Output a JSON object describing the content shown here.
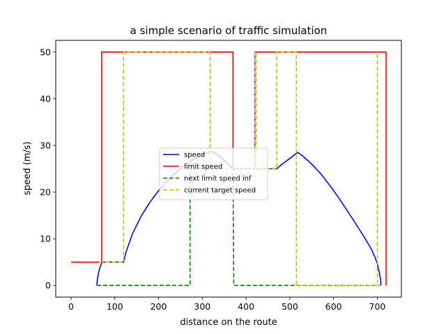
{
  "chart_data": {
    "type": "line",
    "title": "a simple scenario of traffic simulation",
    "xlabel": "distance on the route",
    "ylabel": "speed (m/s)",
    "xlim": [
      -35,
      755
    ],
    "ylim": [
      -2.5,
      52.5
    ],
    "xticks": [
      0,
      100,
      200,
      300,
      400,
      500,
      600,
      700
    ],
    "yticks": [
      0,
      10,
      20,
      30,
      40,
      50
    ],
    "grid": false,
    "legend_position": "center",
    "series": [
      {
        "name": "speed",
        "color": "#0000ff",
        "dash": "solid",
        "points": [
          [
            59,
            0
          ],
          [
            60,
            1.2
          ],
          [
            62,
            2.3
          ],
          [
            64,
            3.2
          ],
          [
            67,
            4.1
          ],
          [
            70,
            4.8
          ],
          [
            72,
            5.0
          ],
          [
            120,
            5.0
          ],
          [
            125,
            7.0
          ],
          [
            140,
            11.0
          ],
          [
            160,
            14.8
          ],
          [
            180,
            17.8
          ],
          [
            200,
            20.3
          ],
          [
            220,
            22.4
          ],
          [
            240,
            24.2
          ],
          [
            260,
            25.8
          ],
          [
            280,
            27.0
          ],
          [
            300,
            28.0
          ],
          [
            320,
            28.7
          ],
          [
            330,
            28.3
          ],
          [
            345,
            27.2
          ],
          [
            360,
            25.9
          ],
          [
            370,
            25.0
          ],
          [
            470,
            25.0
          ],
          [
            480,
            25.8
          ],
          [
            500,
            27.2
          ],
          [
            518,
            28.5
          ],
          [
            530,
            27.7
          ],
          [
            550,
            26.0
          ],
          [
            570,
            24.0
          ],
          [
            590,
            21.6
          ],
          [
            610,
            19.0
          ],
          [
            630,
            16.2
          ],
          [
            650,
            13.3
          ],
          [
            670,
            10.4
          ],
          [
            685,
            8.0
          ],
          [
            695,
            6.0
          ],
          [
            700,
            4.6
          ],
          [
            704,
            3.0
          ],
          [
            707,
            1.5
          ],
          [
            708,
            0.5
          ],
          [
            708,
            0
          ]
        ]
      },
      {
        "name": "limit speed",
        "color": "#ff0000",
        "dash": "solid",
        "points": [
          [
            0,
            5
          ],
          [
            70,
            5
          ],
          [
            70,
            50
          ],
          [
            370,
            50
          ],
          [
            370,
            25
          ],
          [
            420,
            25
          ],
          [
            420,
            50
          ],
          [
            720,
            50
          ],
          [
            720,
            0
          ]
        ]
      },
      {
        "name": "next limit speed inf",
        "color": "#008000",
        "dash": "dashed",
        "points": [
          [
            59,
            0
          ],
          [
            272,
            0
          ],
          [
            272,
            25
          ],
          [
            370,
            25
          ],
          [
            372,
            0
          ],
          [
            700,
            0
          ],
          [
            705,
            0
          ]
        ]
      },
      {
        "name": "current target speed",
        "color": "#bfbf00",
        "dash": "dashed",
        "points": [
          [
            64,
            5
          ],
          [
            120,
            5
          ],
          [
            120,
            50
          ],
          [
            318,
            50
          ],
          [
            318,
            25
          ],
          [
            420,
            25
          ],
          [
            420,
            50
          ],
          [
            423,
            50
          ],
          [
            423,
            25
          ],
          [
            470,
            25
          ],
          [
            470,
            50
          ],
          [
            515,
            50
          ],
          [
            515,
            0
          ],
          [
            700,
            0
          ],
          [
            700,
            50
          ]
        ]
      }
    ]
  }
}
